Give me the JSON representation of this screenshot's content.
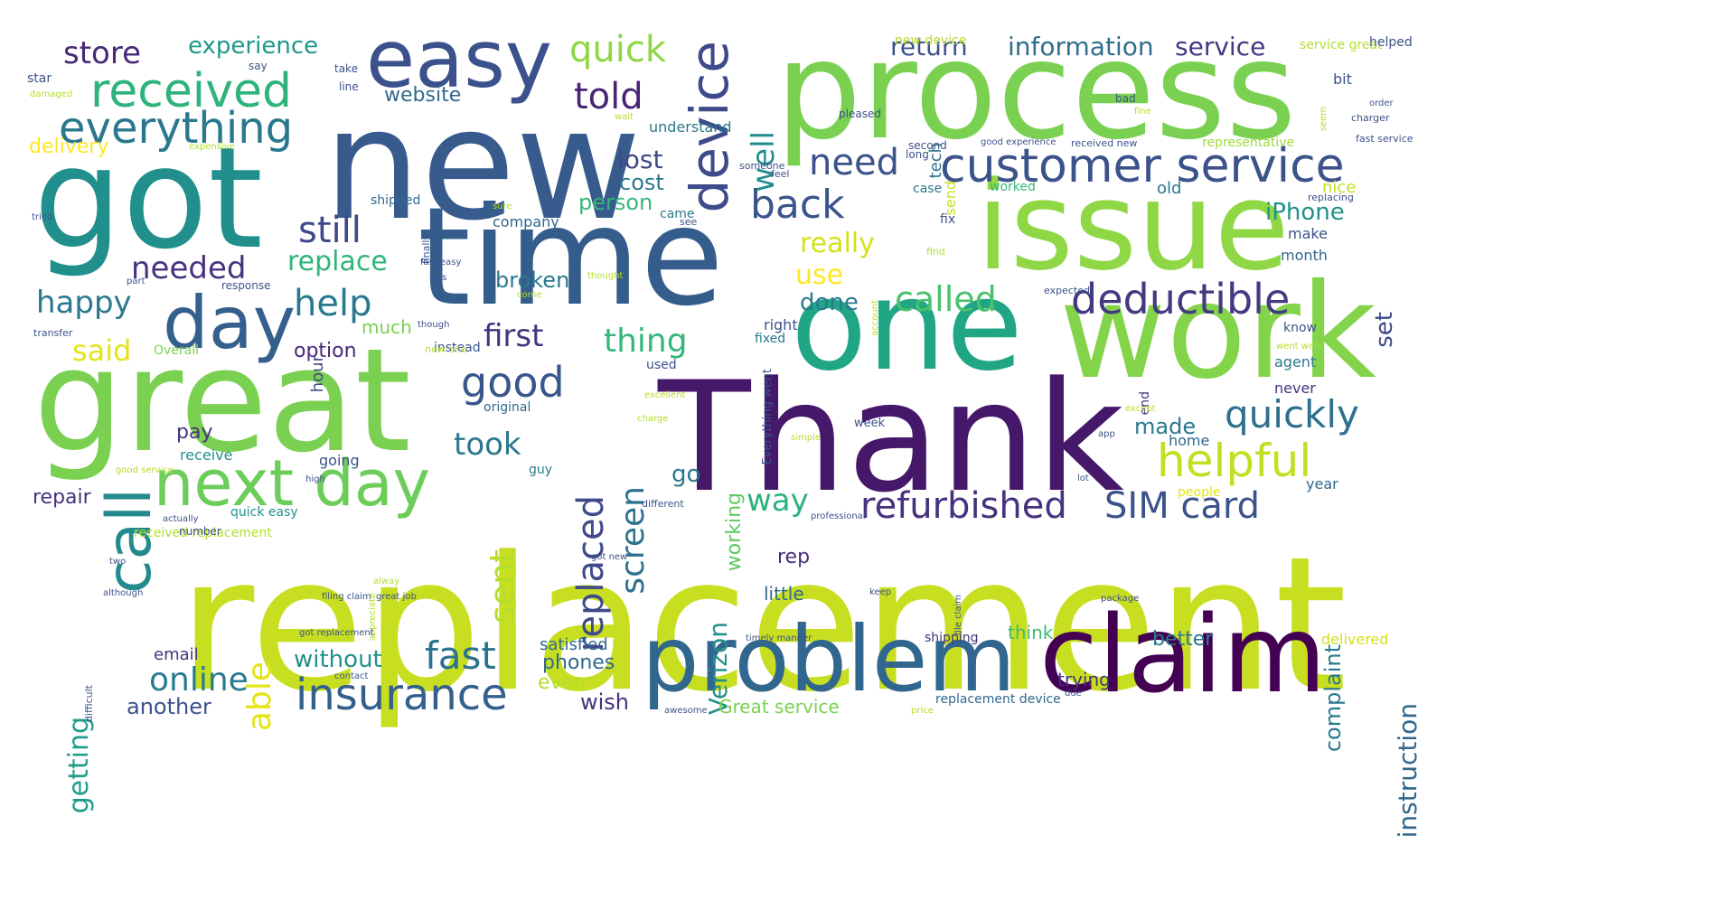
{
  "words": [
    {
      "text": "replacement",
      "color": "#c8df21"
    },
    {
      "text": "Thank",
      "color": "#46186a"
    },
    {
      "text": "new",
      "color": "#375b8c"
    },
    {
      "text": "time",
      "color": "#355d8c"
    },
    {
      "text": "got",
      "color": "#21908c"
    },
    {
      "text": "great",
      "color": "#7ad151"
    },
    {
      "text": "process",
      "color": "#7ad151"
    },
    {
      "text": "issue",
      "color": "#8fd744"
    },
    {
      "text": "work",
      "color": "#84d44b"
    },
    {
      "text": "one",
      "color": "#21a685"
    },
    {
      "text": "claim",
      "color": "#440154"
    },
    {
      "text": "problem",
      "color": "#31668e"
    },
    {
      "text": "easy",
      "color": "#3b518b"
    },
    {
      "text": "day",
      "color": "#355f8d"
    },
    {
      "text": "call",
      "color": "#238a8d"
    },
    {
      "text": "next day",
      "color": "#6ccd5a"
    },
    {
      "text": "received",
      "color": "#2eb37c"
    },
    {
      "text": "customer service",
      "color": "#3b528b"
    },
    {
      "text": "everything",
      "color": "#2a788e"
    },
    {
      "text": "device",
      "color": "#3e4a89"
    },
    {
      "text": "insurance",
      "color": "#355f8d"
    },
    {
      "text": "deductible",
      "color": "#443a83"
    },
    {
      "text": "refurbished",
      "color": "#46327e"
    },
    {
      "text": "SIM card",
      "color": "#3b528b"
    },
    {
      "text": "helpful",
      "color": "#c2df23"
    },
    {
      "text": "quickly",
      "color": "#2d708e"
    },
    {
      "text": "fast",
      "color": "#2c728e"
    },
    {
      "text": "good",
      "color": "#39568c"
    },
    {
      "text": "help",
      "color": "#2a788e"
    },
    {
      "text": "back",
      "color": "#3a548c"
    },
    {
      "text": "need",
      "color": "#3b528b"
    },
    {
      "text": "called",
      "color": "#4ac16d"
    },
    {
      "text": "still",
      "color": "#3f4889"
    },
    {
      "text": "told",
      "color": "#482475"
    },
    {
      "text": "quick",
      "color": "#8fd744"
    },
    {
      "text": "store",
      "color": "#482878"
    },
    {
      "text": "online",
      "color": "#287c8e"
    },
    {
      "text": "happy",
      "color": "#2a788e"
    },
    {
      "text": "needed",
      "color": "#46327e"
    },
    {
      "text": "replace",
      "color": "#31b57b"
    },
    {
      "text": "first",
      "color": "#463480"
    },
    {
      "text": "thing",
      "color": "#35b779"
    },
    {
      "text": "took",
      "color": "#2a788e"
    },
    {
      "text": "screen",
      "color": "#2c728e"
    },
    {
      "text": "replaced",
      "color": "#3f4889"
    },
    {
      "text": "sent",
      "color": "#b5de2b"
    },
    {
      "text": "way",
      "color": "#2db27d"
    },
    {
      "text": "instruction",
      "color": "#31688e"
    },
    {
      "text": "Verizon",
      "color": "#21918c"
    },
    {
      "text": "working",
      "color": "#5ec962"
    },
    {
      "text": "able",
      "color": "#e5e419"
    },
    {
      "text": "getting",
      "color": "#1f9e89"
    },
    {
      "text": "said",
      "color": "#e5e419"
    },
    {
      "text": "really",
      "color": "#d2e21b"
    },
    {
      "text": "use",
      "color": "#fde725"
    },
    {
      "text": "well",
      "color": "#228c8d"
    },
    {
      "text": "return",
      "color": "#3b528b"
    },
    {
      "text": "information",
      "color": "#2e6f8e"
    },
    {
      "text": "service",
      "color": "#443a83"
    },
    {
      "text": "experience",
      "color": "#1f988b"
    },
    {
      "text": "website",
      "color": "#31688e"
    },
    {
      "text": "lost",
      "color": "#3f4889"
    },
    {
      "text": "cost",
      "color": "#2a788e"
    },
    {
      "text": "person",
      "color": "#35b779"
    },
    {
      "text": "broken",
      "color": "#2a788e"
    },
    {
      "text": "without",
      "color": "#21918c"
    },
    {
      "text": "option",
      "color": "#482878"
    },
    {
      "text": "much",
      "color": "#7ad151"
    },
    {
      "text": "pay",
      "color": "#46337e"
    },
    {
      "text": "go",
      "color": "#2a788e"
    },
    {
      "text": "made",
      "color": "#2a788e"
    },
    {
      "text": "iPhone",
      "color": "#21918c"
    },
    {
      "text": "set",
      "color": "#3e4a89"
    },
    {
      "text": "done",
      "color": "#2a788e"
    },
    {
      "text": "rep",
      "color": "#472d7b"
    },
    {
      "text": "complaint",
      "color": "#2a788e"
    },
    {
      "text": "phones",
      "color": "#31688e"
    },
    {
      "text": "wish",
      "color": "#46327e"
    },
    {
      "text": "even",
      "color": "#b5de2b"
    },
    {
      "text": "another",
      "color": "#3b528b"
    },
    {
      "text": "repair",
      "color": "#46327e"
    },
    {
      "text": "hour",
      "color": "#3e4a89"
    },
    {
      "text": "delivery",
      "color": "#fde725"
    },
    {
      "text": "send",
      "color": "#c8e020"
    },
    {
      "text": "tech",
      "color": "#2c728e"
    },
    {
      "text": "better",
      "color": "#2a788e"
    },
    {
      "text": "think",
      "color": "#3dbc74"
    },
    {
      "text": "trying",
      "color": "#46327e"
    },
    {
      "text": "little",
      "color": "#31688e"
    },
    {
      "text": "Great service",
      "color": "#7ad151"
    },
    {
      "text": "satisfied",
      "color": "#31688e"
    },
    {
      "text": "email",
      "color": "#46327e"
    },
    {
      "text": "receive",
      "color": "#21918c"
    },
    {
      "text": "going",
      "color": "#3b528b"
    },
    {
      "text": "guy",
      "color": "#2a788e"
    },
    {
      "text": "home",
      "color": "#31688e"
    },
    {
      "text": "never",
      "color": "#46327e"
    },
    {
      "text": "agent",
      "color": "#2a788e"
    },
    {
      "text": "know",
      "color": "#3b528b"
    },
    {
      "text": "make",
      "color": "#3b528b"
    },
    {
      "text": "month",
      "color": "#31688e"
    },
    {
      "text": "nice",
      "color": "#c2df23"
    },
    {
      "text": "old",
      "color": "#2a788e"
    },
    {
      "text": "fix",
      "color": "#3b528b"
    },
    {
      "text": "case",
      "color": "#2a788e"
    },
    {
      "text": "year",
      "color": "#31688e"
    },
    {
      "text": "people",
      "color": "#e5e419"
    },
    {
      "text": "delivered",
      "color": "#d2e21b"
    },
    {
      "text": "shipped",
      "color": "#31688e"
    },
    {
      "text": "company",
      "color": "#31688e"
    },
    {
      "text": "understand",
      "color": "#2a788e"
    },
    {
      "text": "came",
      "color": "#2a788e"
    },
    {
      "text": "used",
      "color": "#3b528b"
    },
    {
      "text": "instead",
      "color": "#3b528b"
    },
    {
      "text": "fixed",
      "color": "#2a788e"
    },
    {
      "text": "right",
      "color": "#3b528b"
    },
    {
      "text": "worked",
      "color": "#35b779"
    },
    {
      "text": "representative",
      "color": "#a0da39"
    },
    {
      "text": "new device",
      "color": "#b5de2b"
    },
    {
      "text": "service great",
      "color": "#b5de2b"
    },
    {
      "text": "helped",
      "color": "#3b528b"
    },
    {
      "text": "bit",
      "color": "#3b528b"
    },
    {
      "text": "Overall",
      "color": "#7ad151"
    },
    {
      "text": "original",
      "color": "#31688e"
    },
    {
      "text": "quick easy",
      "color": "#21918c"
    },
    {
      "text": "received replacement",
      "color": "#b5de2b"
    },
    {
      "text": "end",
      "color": "#46327e"
    },
    {
      "text": "Everything went",
      "color": "#3b528b"
    },
    {
      "text": "replacement device",
      "color": "#31688e"
    },
    {
      "text": "shipping",
      "color": "#46327e"
    },
    {
      "text": "week",
      "color": "#3b528b"
    },
    {
      "text": "number",
      "color": "#3b528b"
    },
    {
      "text": "star",
      "color": "#3b528b"
    },
    {
      "text": "take",
      "color": "#3b528b"
    },
    {
      "text": "line",
      "color": "#3b528b"
    },
    {
      "text": "say",
      "color": "#3b528b"
    },
    {
      "text": "pleased",
      "color": "#3b528b"
    },
    {
      "text": "bad",
      "color": "#3b528b"
    },
    {
      "text": "second",
      "color": "#3b528b"
    },
    {
      "text": "long",
      "color": "#3b528b"
    },
    {
      "text": "feel",
      "color": "#3b528b"
    },
    {
      "text": "someone",
      "color": "#3b528b"
    },
    {
      "text": "sure",
      "color": "#b5de2b"
    },
    {
      "text": "finally",
      "color": "#3b528b"
    },
    {
      "text": "tried",
      "color": "#3b528b"
    },
    {
      "text": "see",
      "color": "#3b528b"
    },
    {
      "text": "replacing",
      "color": "#3b528b"
    },
    {
      "text": "fast service",
      "color": "#3b528b"
    },
    {
      "text": "charger",
      "color": "#3b528b"
    },
    {
      "text": "order",
      "color": "#3b528b"
    },
    {
      "text": "seem",
      "color": "#b5de2b"
    },
    {
      "text": "fine",
      "color": "#b5de2b"
    },
    {
      "text": "received new",
      "color": "#3b528b"
    },
    {
      "text": "good experience",
      "color": "#3b528b"
    },
    {
      "text": "wait",
      "color": "#b5de2b"
    },
    {
      "text": "expensive",
      "color": "#b5de2b"
    },
    {
      "text": "damaged",
      "color": "#b5de2b"
    },
    {
      "text": "find",
      "color": "#b5de2b"
    },
    {
      "text": "expected",
      "color": "#3b528b"
    },
    {
      "text": "u",
      "color": "#3b528b"
    },
    {
      "text": "fast easy",
      "color": "#3b528b"
    },
    {
      "text": "less",
      "color": "#3b528b"
    },
    {
      "text": "thought",
      "color": "#b5de2b"
    },
    {
      "text": "come",
      "color": "#b5de2b"
    },
    {
      "text": "part",
      "color": "#3b528b"
    },
    {
      "text": "response",
      "color": "#3b528b"
    },
    {
      "text": "though",
      "color": "#3b528b"
    },
    {
      "text": "transfer",
      "color": "#3b528b"
    },
    {
      "text": "new one",
      "color": "#b5de2b"
    },
    {
      "text": "excellent",
      "color": "#b5de2b"
    },
    {
      "text": "charge",
      "color": "#b5de2b"
    },
    {
      "text": "except",
      "color": "#b5de2b"
    },
    {
      "text": "app",
      "color": "#3b528b"
    },
    {
      "text": "went well",
      "color": "#b5de2b"
    },
    {
      "text": "account",
      "color": "#b5de2b"
    },
    {
      "text": "good service",
      "color": "#b5de2b"
    },
    {
      "text": "high",
      "color": "#3b528b"
    },
    {
      "text": "actually",
      "color": "#3b528b"
    },
    {
      "text": "different",
      "color": "#3b528b"
    },
    {
      "text": "professional",
      "color": "#3b528b"
    },
    {
      "text": "simple",
      "color": "#b5de2b"
    },
    {
      "text": "lot",
      "color": "#3b528b"
    },
    {
      "text": "two",
      "color": "#3b528b"
    },
    {
      "text": "although",
      "color": "#3b528b"
    },
    {
      "text": "alway",
      "color": "#b5de2b"
    },
    {
      "text": "got new",
      "color": "#3b528b"
    },
    {
      "text": "filing claim",
      "color": "#3b528b"
    },
    {
      "text": "great job",
      "color": "#3b528b"
    },
    {
      "text": "keep",
      "color": "#3b528b"
    },
    {
      "text": "file claim",
      "color": "#3b528b"
    },
    {
      "text": "package",
      "color": "#3b528b"
    },
    {
      "text": "appreciate",
      "color": "#b5de2b"
    },
    {
      "text": "got replacement",
      "color": "#3b528b"
    },
    {
      "text": "timely manner",
      "color": "#3b528b"
    },
    {
      "text": "difficult",
      "color": "#3b528b"
    },
    {
      "text": "contact",
      "color": "#3b528b"
    },
    {
      "text": "awesome",
      "color": "#3b528b"
    },
    {
      "text": "price",
      "color": "#b5de2b"
    },
    {
      "text": "due",
      "color": "#3b528b"
    },
    {
      "text": "prompt",
      "color": "#b5de2b"
    }
  ]
}
